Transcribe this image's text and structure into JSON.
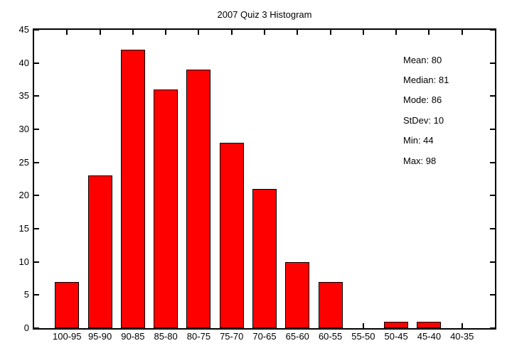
{
  "chart_data": {
    "type": "bar",
    "title": "2007 Quiz 3 Histogram",
    "categories": [
      "100-95",
      "95-90",
      "90-85",
      "85-80",
      "80-75",
      "75-70",
      "70-65",
      "65-60",
      "60-55",
      "55-50",
      "50-45",
      "45-40",
      "40-35"
    ],
    "values": [
      7,
      23,
      42,
      36,
      39,
      28,
      21,
      10,
      7,
      0,
      1,
      1,
      0
    ],
    "xlabel": "",
    "ylabel": "",
    "ylim": [
      0,
      45
    ],
    "ytick_step": 5,
    "grid": false,
    "legend": "none",
    "bar_color": "#ff0000",
    "bar_border_color": "#000000",
    "axis_color": "#000000",
    "background_color": "#ffffff",
    "annotations_position": "top-right",
    "annotations": [
      "Mean: 80",
      "Median: 81",
      "Mode: 86",
      "StDev: 10",
      "Min: 44",
      "Max: 98"
    ]
  }
}
